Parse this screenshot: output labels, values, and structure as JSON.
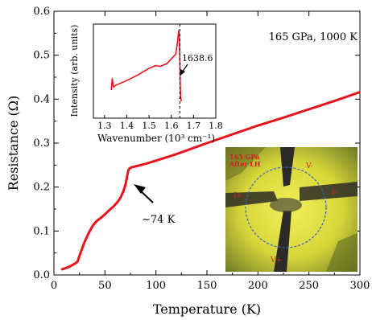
{
  "chart_data": {
    "type": "line",
    "xlabel": "Temperature (K)",
    "ylabel": "Resistance (Ω)",
    "xlim": [
      0,
      300
    ],
    "ylim": [
      0,
      0.6
    ],
    "x_ticks": [
      0,
      50,
      100,
      150,
      200,
      250,
      300
    ],
    "y_ticks": [
      0.0,
      0.1,
      0.2,
      0.3,
      0.4,
      0.5,
      0.6
    ],
    "y_tick_labels": [
      "0.0",
      "0.1",
      "0.2",
      "0.3",
      "0.4",
      "0.5",
      "0.6"
    ],
    "grid": false,
    "legend": null,
    "series": [
      {
        "color": "#e8141c",
        "x": [
          8,
          12,
          16,
          20,
          23,
          26,
          30,
          34,
          38,
          42,
          46,
          50,
          54,
          58,
          62,
          65,
          68,
          70,
          71,
          72,
          73,
          74,
          76,
          80,
          90,
          100,
          120,
          150,
          175,
          200,
          225,
          250,
          275,
          300
        ],
        "y": [
          0.013,
          0.016,
          0.02,
          0.025,
          0.03,
          0.05,
          0.075,
          0.095,
          0.112,
          0.123,
          0.13,
          0.138,
          0.147,
          0.155,
          0.165,
          0.175,
          0.19,
          0.205,
          0.215,
          0.228,
          0.238,
          0.242,
          0.245,
          0.247,
          0.253,
          0.26,
          0.275,
          0.3,
          0.32,
          0.34,
          0.358,
          0.377,
          0.396,
          0.416
        ]
      }
    ],
    "annotations": [
      {
        "text": "165 GPa, 1000 K"
      },
      {
        "text": "~74 K",
        "x": 74,
        "y": 0.242
      }
    ],
    "inset": {
      "type": "line",
      "xlabel": "Wavenumber (10³ cm⁻¹)",
      "ylabel": "Intensity (arb. units)",
      "xlim": [
        1.25,
        1.8
      ],
      "x_ticks": [
        1.3,
        1.4,
        1.5,
        1.6,
        1.7,
        1.8
      ],
      "annotation": "1638.6",
      "dashed_line_x": 1.6386,
      "series": [
        {
          "color": "#e8141c",
          "x": [
            1.33,
            1.335,
            1.34,
            1.35,
            1.4,
            1.45,
            1.5,
            1.53,
            1.55,
            1.58,
            1.6,
            1.62,
            1.625,
            1.63,
            1.633,
            1.636,
            1.6386,
            1.64,
            1.642,
            1.645
          ],
          "y": [
            0.3,
            0.42,
            0.33,
            0.35,
            0.4,
            0.46,
            0.53,
            0.56,
            0.55,
            0.58,
            0.63,
            0.68,
            0.76,
            0.85,
            0.93,
            0.88,
            0.62,
            0.35,
            0.22,
            0.18
          ]
        }
      ]
    }
  },
  "photo_inset": {
    "caption_line1": "165 GPa",
    "caption_line2": "After LH",
    "electrode_labels": [
      "V-",
      "I+",
      "I-",
      "V+"
    ]
  }
}
